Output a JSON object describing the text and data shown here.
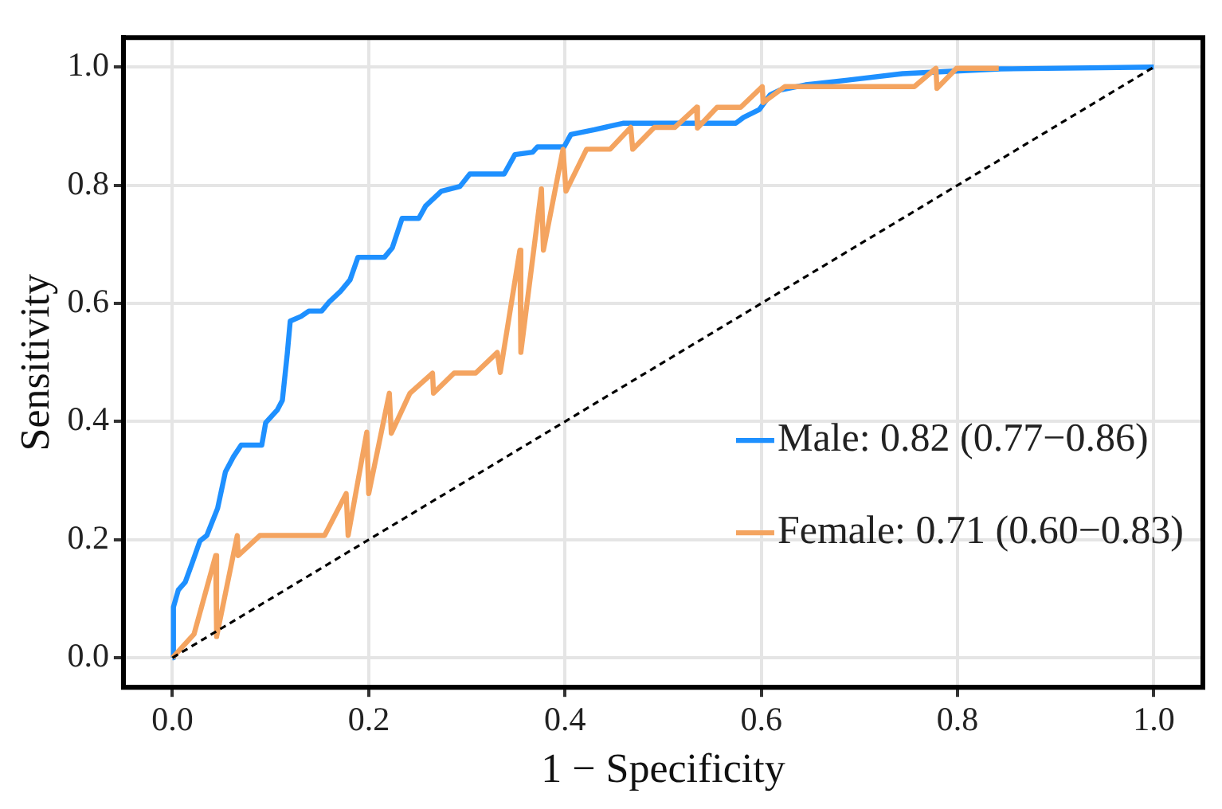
{
  "chart_data": {
    "type": "line",
    "xlabel": "1 − Specificity",
    "ylabel": "Sensitivity",
    "xlim": [
      -0.05,
      1.05
    ],
    "ylim": [
      -0.05,
      1.05
    ],
    "xticks": [
      {
        "value": 0,
        "label": "0.0"
      },
      {
        "value": 0.2,
        "label": "0.2"
      },
      {
        "value": 0.4,
        "label": "0.4"
      },
      {
        "value": 0.6,
        "label": "0.6"
      },
      {
        "value": 0.8,
        "label": "0.8"
      },
      {
        "value": 1,
        "label": "1.0"
      }
    ],
    "yticks": [
      {
        "value": 0,
        "label": "0.0"
      },
      {
        "value": 0.2,
        "label": "0.2"
      },
      {
        "value": 0.4,
        "label": "0.4"
      },
      {
        "value": 0.6,
        "label": "0.6"
      },
      {
        "value": 0.8,
        "label": "0.8"
      },
      {
        "value": 1,
        "label": "1.0"
      }
    ],
    "grid": true,
    "legend": "right",
    "marker": "none",
    "series": [
      {
        "name": "Male: 0.82 (0.77−0.86)",
        "color": "#1e90ff",
        "line_style": "solid",
        "x": [
          0,
          0.001,
          0.006,
          0.013,
          0.02,
          0.028,
          0.035,
          0.046,
          0.054,
          0.062,
          0.07,
          0.091,
          0.095,
          0.107,
          0.112,
          0.117,
          0.12,
          0.131,
          0.139,
          0.152,
          0.16,
          0.171,
          0.181,
          0.189,
          0.216,
          0.224,
          0.234,
          0.251,
          0.258,
          0.274,
          0.293,
          0.303,
          0.338,
          0.349,
          0.367,
          0.372,
          0.399,
          0.406,
          0.43,
          0.459,
          0.574,
          0.582,
          0.598,
          0.609,
          0.619,
          0.645,
          0.688,
          0.744,
          0.844,
          1.0
        ],
        "values": [
          0,
          0.086,
          0.115,
          0.128,
          0.16,
          0.198,
          0.207,
          0.253,
          0.315,
          0.34,
          0.36,
          0.36,
          0.398,
          0.42,
          0.436,
          0.515,
          0.57,
          0.578,
          0.587,
          0.587,
          0.603,
          0.62,
          0.64,
          0.678,
          0.678,
          0.694,
          0.744,
          0.744,
          0.765,
          0.79,
          0.798,
          0.819,
          0.819,
          0.852,
          0.856,
          0.865,
          0.865,
          0.886,
          0.894,
          0.905,
          0.905,
          0.915,
          0.928,
          0.953,
          0.961,
          0.97,
          0.978,
          0.989,
          0.997,
          1.0
        ]
      },
      {
        "name": "Female: 0.71 (0.60−0.83)",
        "color": "#f4a460",
        "line_style": "solid",
        "x": [
          0,
          0.022,
          0.044,
          0.045,
          0.066,
          0.067,
          0.089,
          0.155,
          0.177,
          0.179,
          0.198,
          0.2,
          0.221,
          0.223,
          0.242,
          0.265,
          0.266,
          0.287,
          0.309,
          0.331,
          0.334,
          0.354,
          0.355,
          0.376,
          0.378,
          0.398,
          0.401,
          0.422,
          0.446,
          0.467,
          0.469,
          0.491,
          0.512,
          0.534,
          0.535,
          0.555,
          0.579,
          0.601,
          0.602,
          0.624,
          0.756,
          0.778,
          0.779,
          0.799,
          0.842
        ],
        "values": [
          0,
          0.04,
          0.173,
          0.036,
          0.207,
          0.173,
          0.207,
          0.207,
          0.278,
          0.207,
          0.382,
          0.278,
          0.448,
          0.38,
          0.448,
          0.482,
          0.448,
          0.482,
          0.482,
          0.517,
          0.483,
          0.69,
          0.517,
          0.794,
          0.69,
          0.861,
          0.79,
          0.861,
          0.861,
          0.898,
          0.861,
          0.898,
          0.898,
          0.932,
          0.897,
          0.932,
          0.932,
          0.967,
          0.94,
          0.967,
          0.967,
          0.998,
          0.964,
          0.998,
          0.998
        ]
      },
      {
        "color": "#000000",
        "line_style": "dashed",
        "x": [
          0,
          1
        ],
        "values": [
          0,
          1
        ]
      }
    ]
  }
}
